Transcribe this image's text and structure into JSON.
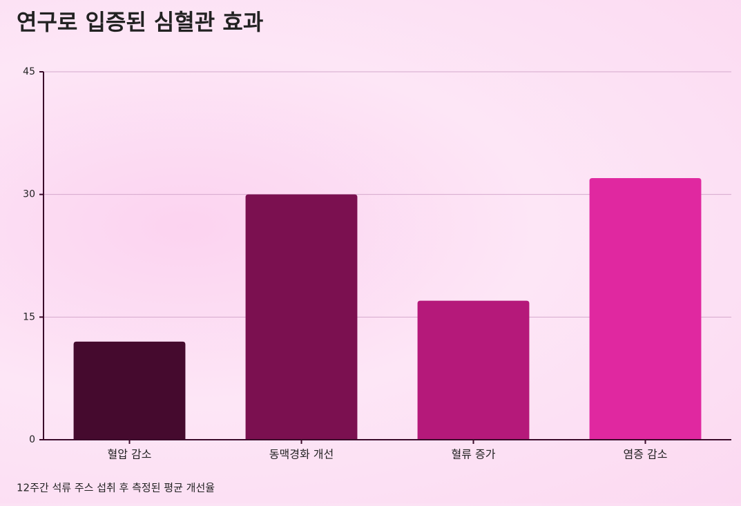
{
  "chart_data": {
    "type": "bar",
    "title": "연구로 입증된 심혈관 효과",
    "caption": "12주간 석류 주스 섭취 후 측정된 평균 개선율",
    "categories": [
      "혈압 감소",
      "동맥경화 개선",
      "혈류 증가",
      "염증 감소"
    ],
    "values": [
      12,
      30,
      17,
      32
    ],
    "colors": [
      "#450a2e",
      "#7b1050",
      "#b5197a",
      "#e028a0"
    ],
    "ylim": [
      0,
      45
    ],
    "yticks": [
      0,
      15,
      30,
      45
    ],
    "grid": true
  }
}
